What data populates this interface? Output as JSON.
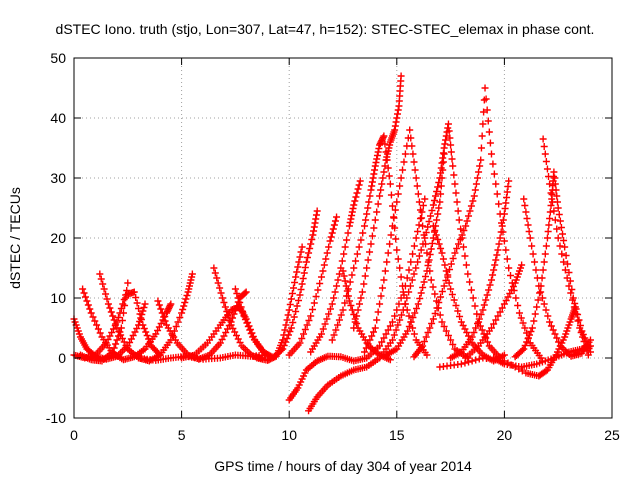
{
  "chart_data": {
    "type": "scatter",
    "title": "dSTEC Iono. truth (stjo, Lon=307, Lat=47, h=152): STEC-STEC_elemax in phase cont.",
    "xlabel": "GPS time / hours of day 304 of year 2014",
    "ylabel": "dSTEC  / TECUs",
    "xlim": [
      0,
      25
    ],
    "ylim": [
      -10,
      50
    ],
    "x_ticks": [
      0,
      5,
      10,
      15,
      20,
      25
    ],
    "y_ticks": [
      -10,
      0,
      10,
      20,
      30,
      40,
      50
    ],
    "x_tick_labels": [
      "0",
      "5",
      "10",
      "15",
      "20",
      "25"
    ],
    "y_tick_labels": [
      "-10",
      "0",
      "10",
      "20",
      "30",
      "40",
      "50"
    ],
    "grid": true,
    "marker": "+",
    "color": "#ff0000",
    "series": [
      {
        "points": [
          [
            0.0,
            6.5
          ],
          [
            0.3,
            3.5
          ],
          [
            0.6,
            1.5
          ],
          [
            1.0,
            0.3
          ],
          [
            1.5,
            -0.2
          ],
          [
            2.0,
            0.3
          ],
          [
            2.5,
            2.0
          ],
          [
            3.0,
            5.5
          ],
          [
            3.3,
            9.0
          ]
        ]
      },
      {
        "points": [
          [
            0.4,
            11.5
          ],
          [
            0.8,
            7.5
          ],
          [
            1.3,
            3.5
          ],
          [
            1.8,
            0.8
          ],
          [
            2.3,
            -0.3
          ],
          [
            2.8,
            0.2
          ],
          [
            3.3,
            1.5
          ],
          [
            3.8,
            4.0
          ],
          [
            4.3,
            7.5
          ],
          [
            4.5,
            9.0
          ]
        ]
      },
      {
        "points": [
          [
            1.2,
            14.0
          ],
          [
            1.6,
            9.0
          ],
          [
            2.0,
            5.0
          ],
          [
            2.5,
            1.5
          ],
          [
            3.0,
            0.0
          ],
          [
            3.5,
            -0.5
          ],
          [
            4.0,
            0.5
          ],
          [
            4.5,
            3.0
          ],
          [
            5.0,
            7.5
          ],
          [
            5.3,
            11.0
          ],
          [
            5.5,
            14.0
          ]
        ]
      },
      {
        "points": [
          [
            0.3,
            0.5
          ],
          [
            0.8,
            -0.3
          ],
          [
            1.3,
            -0.5
          ],
          [
            1.8,
            1.0
          ],
          [
            2.2,
            5.0
          ],
          [
            2.5,
            12.5
          ]
        ]
      },
      {
        "points": [
          [
            0.0,
            0.5
          ],
          [
            0.5,
            0.0
          ],
          [
            1.0,
            0.5
          ],
          [
            1.5,
            2.5
          ],
          [
            2.0,
            6.0
          ],
          [
            2.4,
            10.5
          ],
          [
            2.8,
            11.0
          ],
          [
            3.2,
            5.5
          ],
          [
            3.6,
            2.0
          ],
          [
            4.0,
            0.5
          ]
        ]
      },
      {
        "points": [
          [
            3.9,
            9.5
          ],
          [
            4.3,
            5.5
          ],
          [
            4.8,
            2.5
          ],
          [
            5.3,
            0.5
          ],
          [
            5.8,
            -0.2
          ],
          [
            6.3,
            0.5
          ],
          [
            6.8,
            2.5
          ],
          [
            7.3,
            6.0
          ],
          [
            7.7,
            10.0
          ],
          [
            8.0,
            11.0
          ]
        ]
      },
      {
        "points": [
          [
            3.0,
            0.0
          ],
          [
            3.8,
            -0.4
          ],
          [
            4.5,
            0.0
          ],
          [
            5.2,
            0.3
          ],
          [
            6.0,
            -0.2
          ],
          [
            6.8,
            0.0
          ],
          [
            7.5,
            0.5
          ],
          [
            8.2,
            0.3
          ],
          [
            9.0,
            0.5
          ]
        ]
      },
      {
        "points": [
          [
            6.5,
            15.0
          ],
          [
            6.9,
            10.0
          ],
          [
            7.3,
            5.5
          ],
          [
            7.8,
            2.0
          ],
          [
            8.3,
            0.3
          ],
          [
            8.7,
            0.0
          ]
        ]
      },
      {
        "points": [
          [
            5.0,
            0.0
          ],
          [
            5.6,
            0.5
          ],
          [
            6.2,
            2.5
          ],
          [
            6.8,
            5.5
          ],
          [
            7.3,
            8.0
          ],
          [
            7.7,
            8.5
          ],
          [
            8.0,
            6.5
          ],
          [
            8.4,
            3.0
          ],
          [
            8.8,
            1.0
          ]
        ]
      },
      {
        "points": [
          [
            7.5,
            11.5
          ],
          [
            7.9,
            7.0
          ],
          [
            8.3,
            3.5
          ],
          [
            8.8,
            1.0
          ],
          [
            9.2,
            0.2
          ]
        ]
      },
      {
        "points": [
          [
            8.5,
            0.0
          ],
          [
            9.0,
            -0.4
          ],
          [
            9.4,
            0.3
          ],
          [
            9.7,
            3.0
          ],
          [
            10.0,
            8.0
          ],
          [
            10.3,
            13.5
          ],
          [
            10.6,
            18.5
          ]
        ]
      },
      {
        "points": [
          [
            9.3,
            0.2
          ],
          [
            9.7,
            1.5
          ],
          [
            10.1,
            5.0
          ],
          [
            10.5,
            10.5
          ],
          [
            10.8,
            16.0
          ],
          [
            11.1,
            20.5
          ],
          [
            11.3,
            24.5
          ]
        ]
      },
      {
        "points": [
          [
            10.0,
            0.5
          ],
          [
            10.5,
            2.5
          ],
          [
            11.0,
            7.0
          ],
          [
            11.5,
            13.5
          ],
          [
            11.9,
            19.5
          ],
          [
            12.2,
            23.5
          ]
        ]
      },
      {
        "points": [
          [
            11.0,
            1.0
          ],
          [
            11.5,
            4.0
          ],
          [
            12.0,
            9.0
          ],
          [
            12.4,
            15.0
          ],
          [
            12.8,
            22.0
          ],
          [
            13.0,
            25.5
          ],
          [
            13.3,
            29.5
          ]
        ]
      },
      {
        "points": [
          [
            12.0,
            3.0
          ],
          [
            12.5,
            8.0
          ],
          [
            13.0,
            15.0
          ],
          [
            13.5,
            22.0
          ],
          [
            13.8,
            28.0
          ],
          [
            14.0,
            32.0
          ],
          [
            14.2,
            35.5
          ],
          [
            14.4,
            37.0
          ],
          [
            14.7,
            29.0
          ],
          [
            15.0,
            18.0
          ],
          [
            15.4,
            9.0
          ],
          [
            15.9,
            3.0
          ],
          [
            16.4,
            0.5
          ]
        ]
      },
      {
        "points": [
          [
            13.0,
            5.0
          ],
          [
            13.4,
            11.0
          ],
          [
            13.8,
            19.0
          ],
          [
            14.2,
            27.0
          ],
          [
            14.5,
            33.0
          ],
          [
            14.7,
            36.0
          ],
          [
            14.9,
            38.0
          ],
          [
            15.1,
            42.0
          ],
          [
            15.2,
            47.0
          ]
        ]
      },
      {
        "points": [
          [
            13.5,
            1.0
          ],
          [
            14.0,
            5.0
          ],
          [
            14.4,
            13.0
          ],
          [
            14.8,
            22.0
          ],
          [
            15.2,
            30.0
          ],
          [
            15.6,
            38.0
          ],
          [
            15.9,
            30.0
          ],
          [
            16.2,
            22.0
          ],
          [
            16.6,
            13.0
          ],
          [
            17.1,
            6.0
          ],
          [
            17.7,
            1.5
          ],
          [
            18.3,
            0.0
          ]
        ]
      },
      {
        "points": [
          [
            10.0,
            -7.0
          ],
          [
            10.4,
            -5.0
          ],
          [
            10.8,
            -2.0
          ],
          [
            11.3,
            -0.5
          ],
          [
            11.8,
            0.3
          ],
          [
            12.4,
            0.2
          ],
          [
            13.0,
            -0.5
          ],
          [
            13.6,
            0.0
          ],
          [
            14.2,
            2.0
          ],
          [
            14.8,
            6.0
          ],
          [
            15.4,
            12.0
          ],
          [
            15.9,
            20.0
          ],
          [
            16.3,
            26.5
          ]
        ]
      },
      {
        "points": [
          [
            10.9,
            -8.8
          ],
          [
            11.3,
            -6.5
          ],
          [
            11.8,
            -4.5
          ],
          [
            12.4,
            -3.0
          ],
          [
            13.0,
            -2.0
          ],
          [
            13.6,
            -1.5
          ],
          [
            14.2,
            0.0
          ],
          [
            14.8,
            3.0
          ],
          [
            15.3,
            8.0
          ],
          [
            15.8,
            14.0
          ],
          [
            16.3,
            20.0
          ],
          [
            16.7,
            25.5
          ],
          [
            17.0,
            30.0
          ],
          [
            17.2,
            35.0
          ],
          [
            17.4,
            39.0
          ],
          [
            17.6,
            32.0
          ],
          [
            17.9,
            23.0
          ],
          [
            18.3,
            14.0
          ],
          [
            18.8,
            6.0
          ],
          [
            19.3,
            2.0
          ],
          [
            19.8,
            0.0
          ]
        ]
      },
      {
        "points": [
          [
            12.5,
            14.5
          ],
          [
            12.8,
            9.5
          ],
          [
            13.2,
            5.0
          ],
          [
            13.7,
            2.0
          ],
          [
            14.2,
            0.5
          ],
          [
            14.7,
            -0.3
          ]
        ]
      },
      {
        "points": [
          [
            14.5,
            0.5
          ],
          [
            15.0,
            1.5
          ],
          [
            15.5,
            4.5
          ],
          [
            16.0,
            9.0
          ],
          [
            16.4,
            14.5
          ],
          [
            16.7,
            20.0
          ],
          [
            17.0,
            26.0
          ],
          [
            17.2,
            34.0
          ]
        ]
      },
      {
        "points": [
          [
            16.7,
            22.0
          ],
          [
            17.1,
            17.5
          ],
          [
            17.5,
            11.5
          ],
          [
            18.0,
            6.0
          ],
          [
            18.5,
            2.5
          ],
          [
            19.0,
            0.5
          ],
          [
            19.5,
            -0.5
          ],
          [
            20.0,
            0.5
          ]
        ]
      },
      {
        "points": [
          [
            15.8,
            0.2
          ],
          [
            16.2,
            2.0
          ],
          [
            16.7,
            6.5
          ],
          [
            17.2,
            12.0
          ],
          [
            17.7,
            17.5
          ],
          [
            18.2,
            22.0
          ],
          [
            18.6,
            27.0
          ],
          [
            18.9,
            33.0
          ],
          [
            19.1,
            45.0
          ],
          [
            19.4,
            34.0
          ],
          [
            19.8,
            24.0
          ],
          [
            20.2,
            15.0
          ],
          [
            20.7,
            7.5
          ],
          [
            21.2,
            2.5
          ],
          [
            21.7,
            0.0
          ]
        ]
      },
      {
        "points": [
          [
            17.5,
            0.0
          ],
          [
            18.0,
            1.0
          ],
          [
            18.5,
            3.5
          ],
          [
            19.0,
            8.0
          ],
          [
            19.4,
            13.0
          ],
          [
            19.7,
            18.0
          ],
          [
            20.0,
            24.0
          ],
          [
            20.2,
            29.5
          ]
        ]
      },
      {
        "points": [
          [
            17.0,
            -1.5
          ],
          [
            18.0,
            -1.0
          ],
          [
            19.0,
            0.0
          ],
          [
            20.0,
            -0.5
          ],
          [
            21.0,
            -2.5
          ],
          [
            21.6,
            -3.0
          ],
          [
            22.0,
            -2.0
          ],
          [
            22.4,
            0.5
          ],
          [
            22.8,
            3.5
          ],
          [
            23.1,
            6.5
          ],
          [
            23.3,
            8.5
          ]
        ]
      },
      {
        "points": [
          [
            18.2,
            0.0
          ],
          [
            18.8,
            2.0
          ],
          [
            19.4,
            5.0
          ],
          [
            20.0,
            9.0
          ],
          [
            20.5,
            12.5
          ],
          [
            20.8,
            15.5
          ]
        ]
      },
      {
        "points": [
          [
            20.9,
            26.5
          ],
          [
            21.2,
            20.0
          ],
          [
            21.6,
            12.0
          ],
          [
            22.1,
            6.0
          ],
          [
            22.6,
            2.0
          ],
          [
            23.1,
            0.3
          ],
          [
            23.6,
            0.8
          ],
          [
            24.0,
            3.0
          ]
        ]
      },
      {
        "points": [
          [
            20.5,
            0.2
          ],
          [
            20.9,
            1.5
          ],
          [
            21.3,
            5.0
          ],
          [
            21.7,
            12.0
          ],
          [
            22.0,
            20.0
          ],
          [
            22.2,
            26.5
          ],
          [
            22.3,
            31.0
          ],
          [
            22.5,
            25.0
          ],
          [
            22.8,
            18.5
          ],
          [
            23.2,
            10.0
          ],
          [
            23.6,
            4.5
          ],
          [
            24.0,
            1.0
          ]
        ]
      },
      {
        "points": [
          [
            21.8,
            36.5
          ],
          [
            22.1,
            29.0
          ],
          [
            22.5,
            20.0
          ],
          [
            23.0,
            12.0
          ],
          [
            23.5,
            5.0
          ],
          [
            23.9,
            0.5
          ]
        ]
      },
      {
        "points": [
          [
            19.5,
            0.0
          ],
          [
            20.0,
            -1.0
          ],
          [
            20.8,
            -1.5
          ],
          [
            21.5,
            -1.0
          ],
          [
            22.3,
            0.0
          ],
          [
            23.0,
            1.0
          ],
          [
            23.6,
            1.5
          ],
          [
            24.0,
            2.0
          ]
        ]
      }
    ]
  }
}
